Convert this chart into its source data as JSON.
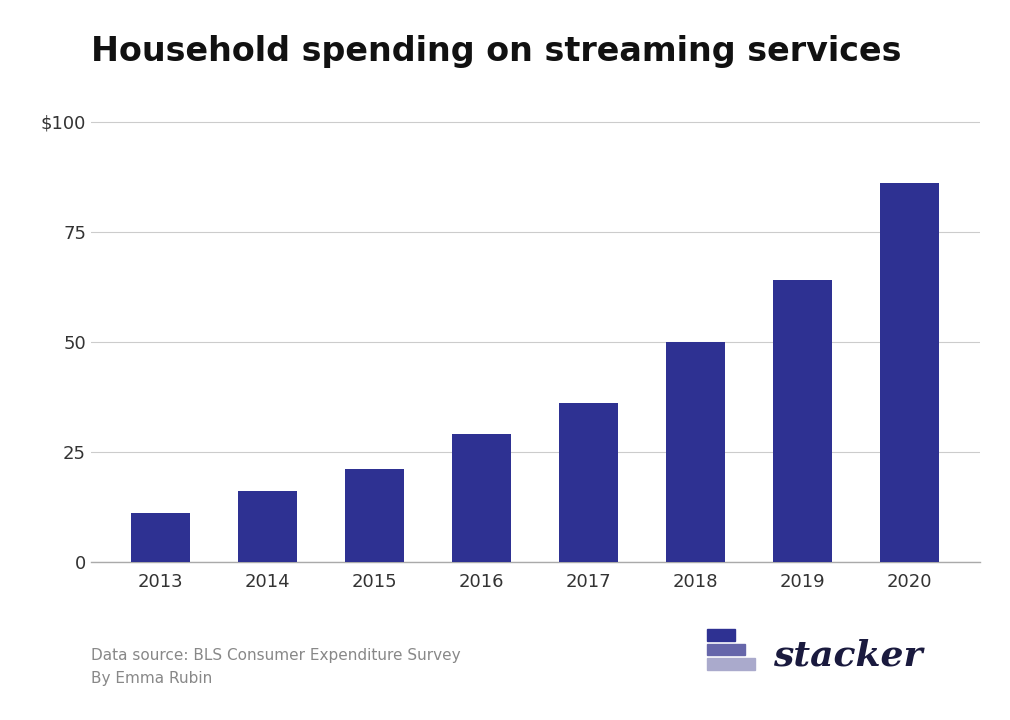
{
  "title": "Household spending on streaming services",
  "years": [
    "2013",
    "2014",
    "2015",
    "2016",
    "2017",
    "2018",
    "2019",
    "2020"
  ],
  "values": [
    11,
    16,
    21,
    29,
    36,
    50,
    64,
    86
  ],
  "bar_color": "#2E3192",
  "yticks": [
    0,
    25,
    50,
    75,
    100
  ],
  "ytick_labels": [
    "0",
    "25",
    "50",
    "75",
    "$100"
  ],
  "ylim": [
    0,
    108
  ],
  "background_color": "#ffffff",
  "title_fontsize": 24,
  "tick_fontsize": 13,
  "source_text": "Data source: BLS Consumer Expenditure Survey\nBy Emma Rubin",
  "source_fontsize": 11,
  "source_color": "#888888",
  "stacker_text": "stacker",
  "stacker_color": "#1a1a3e",
  "stacker_fontsize": 26,
  "grid_color": "#cccccc",
  "bar_width": 0.55
}
